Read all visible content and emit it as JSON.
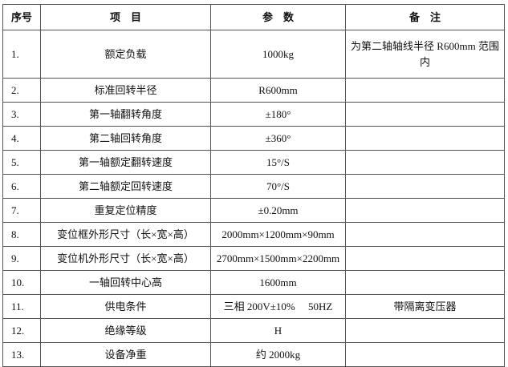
{
  "table": {
    "headers": [
      "序号",
      "项　目",
      "参　数",
      "备　注"
    ],
    "rows": [
      {
        "no": "1.",
        "item": "额定负载",
        "param": "1000kg",
        "note": "为第二轴轴线半径 R600mm 范围内"
      },
      {
        "no": "2.",
        "item": "标准回转半径",
        "param": "R600mm"
      },
      {
        "no": "3.",
        "item": "第一轴翻转角度",
        "param": "±180°"
      },
      {
        "no": "4.",
        "item": "第二轴回转角度",
        "param": "±360°"
      },
      {
        "no": "5.",
        "item": "第一轴额定翻转速度",
        "param": "15°/S"
      },
      {
        "no": "6.",
        "item": "第二轴额定回转速度",
        "param": "70°/S"
      },
      {
        "no": "7.",
        "item": "重复定位精度",
        "param": "±0.20mm"
      },
      {
        "no": "8.",
        "item": "变位框外形尺寸（长×宽×高）",
        "param": "2000mm×1200mm×90mm"
      },
      {
        "no": "9.",
        "item": "变位机外形尺寸（长×宽×高）",
        "param": "2700mm×1500mm×2200mm"
      },
      {
        "no": "10.",
        "item": "一轴回转中心高",
        "param": "1600mm"
      },
      {
        "no": "11.",
        "item": "供电条件",
        "param": "三相 200V±10%　 50HZ",
        "note": "带隔离变压器"
      },
      {
        "no": "12.",
        "item": "绝缘等级",
        "param": "H"
      },
      {
        "no": "13.",
        "item": "设备净重",
        "param": "约 2000kg"
      }
    ]
  }
}
